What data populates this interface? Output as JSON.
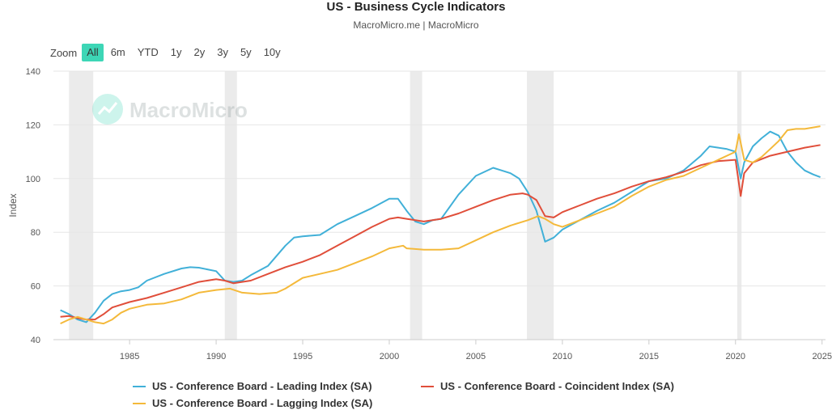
{
  "header": {
    "title": "US - Business Cycle Indicators",
    "subtitle": "MacroMicro.me | MacroMicro"
  },
  "zoom": {
    "label": "Zoom",
    "buttons": [
      "All",
      "6m",
      "YTD",
      "1y",
      "2y",
      "3y",
      "5y",
      "10y"
    ],
    "active": "All"
  },
  "watermark": "MacroMicro",
  "chart_data": {
    "type": "line",
    "title": "US - Business Cycle Indicators",
    "subtitle": "MacroMicro.me | MacroMicro",
    "xlabel": "",
    "ylabel": "Index",
    "xlim": [
      1980.6,
      2025.2
    ],
    "ylim": [
      40,
      140
    ],
    "yticks": [
      40,
      60,
      80,
      100,
      120,
      140
    ],
    "xticks": [
      1985,
      1990,
      1995,
      2000,
      2005,
      2010,
      2015,
      2020,
      2025
    ],
    "grid": true,
    "legend_position": "bottom",
    "recessions": [
      [
        1981.5,
        1982.9
      ],
      [
        1990.5,
        1991.2
      ],
      [
        2001.2,
        2001.9
      ],
      [
        2007.95,
        2009.5
      ],
      [
        2020.1,
        2020.35
      ]
    ],
    "series": [
      {
        "name": "US - Conference Board - Leading Index (SA)",
        "color": "#41b0d8",
        "x": [
          1981.0,
          1981.5,
          1982.0,
          1982.5,
          1983.0,
          1983.5,
          1984.0,
          1984.5,
          1985.0,
          1985.5,
          1986.0,
          1987.0,
          1988.0,
          1988.5,
          1989.0,
          1990.0,
          1990.5,
          1991.0,
          1991.5,
          1992.0,
          1993.0,
          1994.0,
          1994.5,
          1995.0,
          1996.0,
          1997.0,
          1998.0,
          1999.0,
          2000.0,
          2000.5,
          2001.0,
          2001.5,
          2002.0,
          2002.5,
          2003.0,
          2004.0,
          2005.0,
          2006.0,
          2006.5,
          2007.0,
          2007.5,
          2008.0,
          2008.5,
          2009.0,
          2009.5,
          2010.0,
          2011.0,
          2012.0,
          2013.0,
          2014.0,
          2015.0,
          2016.0,
          2017.0,
          2018.0,
          2018.5,
          2019.0,
          2019.5,
          2020.0,
          2020.3,
          2020.5,
          2021.0,
          2021.5,
          2022.0,
          2022.5,
          2023.0,
          2023.5,
          2024.0,
          2024.5,
          2024.9
        ],
        "values": [
          51,
          49.5,
          47.5,
          46.5,
          50,
          54.5,
          57,
          58,
          58.5,
          59.5,
          62,
          64.5,
          66.5,
          67,
          66.8,
          65.5,
          62,
          61.5,
          62,
          64,
          67.5,
          75,
          78,
          78.5,
          79,
          83,
          86,
          89,
          92.5,
          92.5,
          88,
          84,
          83,
          84.5,
          85,
          94,
          101,
          104,
          103,
          102,
          100,
          95,
          88,
          76.5,
          78,
          81,
          84.5,
          88,
          91,
          95,
          99,
          100,
          103,
          108.5,
          112,
          111.5,
          111,
          110,
          100,
          106,
          112,
          115,
          117.5,
          116,
          110,
          106,
          103,
          101.5,
          100.5
        ]
      },
      {
        "name": "US - Conference Board - Coincident Index (SA)",
        "color": "#e04e3a",
        "x": [
          1981.0,
          1981.5,
          1982.0,
          1982.5,
          1983.0,
          1983.5,
          1984.0,
          1985.0,
          1986.0,
          1987.0,
          1988.0,
          1989.0,
          1990.0,
          1990.5,
          1991.0,
          1992.0,
          1993.0,
          1994.0,
          1995.0,
          1996.0,
          1997.0,
          1998.0,
          1999.0,
          2000.0,
          2000.5,
          2001.0,
          2002.0,
          2003.0,
          2004.0,
          2005.0,
          2006.0,
          2007.0,
          2007.7,
          2008.0,
          2008.5,
          2009.0,
          2009.5,
          2010.0,
          2011.0,
          2012.0,
          2013.0,
          2014.0,
          2015.0,
          2016.0,
          2017.0,
          2018.0,
          2019.0,
          2020.0,
          2020.3,
          2020.5,
          2021.0,
          2022.0,
          2023.0,
          2024.0,
          2024.9
        ],
        "values": [
          48.5,
          48.8,
          48,
          47.5,
          47.5,
          49.5,
          52,
          54,
          55.5,
          57.5,
          59.5,
          61.5,
          62.5,
          62,
          61,
          62,
          64.5,
          67,
          69,
          71.5,
          75,
          78.5,
          82,
          85,
          85.5,
          85,
          84,
          85,
          87,
          89.5,
          92,
          94,
          94.5,
          94,
          92,
          86,
          85.5,
          87.5,
          90,
          92.5,
          94.5,
          97,
          99,
          100.5,
          102.5,
          105,
          106.5,
          107,
          93.5,
          102,
          106,
          108.5,
          110,
          111.5,
          112.5
        ]
      },
      {
        "name": "US - Conference Board - Lagging Index (SA)",
        "color": "#f4b93a",
        "x": [
          1981.0,
          1981.5,
          1982.0,
          1982.5,
          1983.0,
          1983.5,
          1984.0,
          1984.5,
          1985.0,
          1986.0,
          1987.0,
          1988.0,
          1989.0,
          1990.0,
          1990.8,
          1991.5,
          1992.5,
          1993.5,
          1994.0,
          1995.0,
          1996.0,
          1997.0,
          1998.0,
          1999.0,
          2000.0,
          2000.8,
          2001.0,
          2002.0,
          2003.0,
          2004.0,
          2005.0,
          2006.0,
          2007.0,
          2008.0,
          2008.6,
          2009.0,
          2009.5,
          2010.0,
          2011.0,
          2012.0,
          2013.0,
          2014.0,
          2015.0,
          2016.0,
          2017.0,
          2018.0,
          2019.0,
          2020.0,
          2020.2,
          2020.5,
          2021.0,
          2021.5,
          2022.0,
          2022.5,
          2023.0,
          2023.5,
          2024.0,
          2024.9
        ],
        "values": [
          46,
          47.5,
          48.5,
          47.5,
          46.5,
          46,
          47.5,
          50,
          51.5,
          53,
          53.5,
          55,
          57.5,
          58.5,
          59,
          57.5,
          57,
          57.5,
          59,
          63,
          64.5,
          66,
          68.5,
          71,
          74,
          75,
          74,
          73.5,
          73.5,
          74,
          77,
          80,
          82.5,
          84.5,
          86,
          85,
          83,
          82,
          84.5,
          87,
          89.5,
          93.5,
          97,
          99.5,
          101,
          104,
          107,
          110,
          116.5,
          107,
          106,
          108,
          111,
          114,
          118,
          118.5,
          118.5,
          119.5
        ]
      }
    ]
  }
}
